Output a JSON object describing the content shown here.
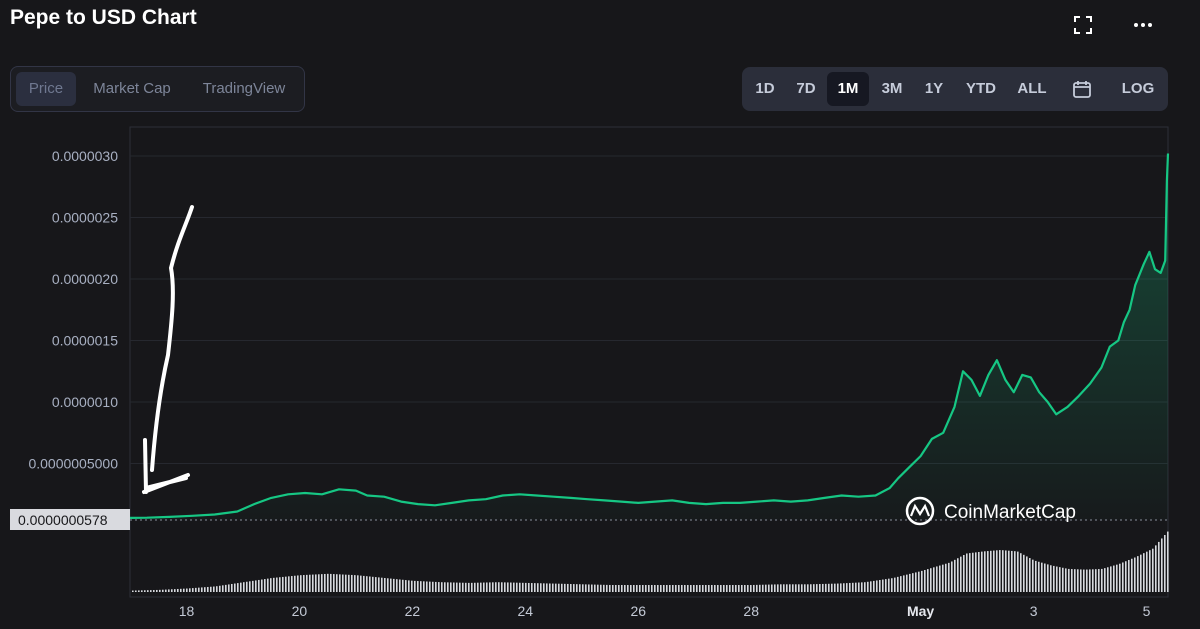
{
  "header": {
    "title": "Pepe to USD Chart",
    "fullscreen_icon": "fullscreen-icon",
    "more_icon": "more-horizontal-icon"
  },
  "view_tabs": [
    {
      "label": "Price",
      "active": true
    },
    {
      "label": "Market Cap",
      "active": false
    },
    {
      "label": "TradingView",
      "active": false
    }
  ],
  "range_tabs": [
    {
      "label": "1D",
      "active": false
    },
    {
      "label": "7D",
      "active": false
    },
    {
      "label": "1M",
      "active": true
    },
    {
      "label": "3M",
      "active": false
    },
    {
      "label": "1Y",
      "active": false
    },
    {
      "label": "YTD",
      "active": false
    },
    {
      "label": "ALL",
      "active": false
    }
  ],
  "calendar_icon": "calendar-icon",
  "log_label": "LOG",
  "watermark": "CoinMarketCap",
  "current_price_label": "0.0000000578",
  "colors": {
    "line": "#16c784",
    "background": "#17171a",
    "annotation": "#ffffff"
  },
  "chart_data": {
    "type": "area",
    "y_ticks": [
      "0.0000030",
      "0.0000025",
      "0.0000020",
      "0.0000015",
      "0.0000010",
      "0.0000005000"
    ],
    "ylim": [
      5e-08,
      3.1e-06
    ],
    "x_ticks": [
      {
        "label": "18",
        "day": 17.5,
        "bold": false
      },
      {
        "label": "20",
        "day": 19.5,
        "bold": false
      },
      {
        "label": "22",
        "day": 21.5,
        "bold": false
      },
      {
        "label": "24",
        "day": 23.5,
        "bold": false
      },
      {
        "label": "26",
        "day": 25.5,
        "bold": false
      },
      {
        "label": "28",
        "day": 27.5,
        "bold": false
      },
      {
        "label": "May",
        "day": 30.5,
        "bold": true
      },
      {
        "label": "3",
        "day": 32.5,
        "bold": false
      },
      {
        "label": "5",
        "day": 34.5,
        "bold": false
      }
    ],
    "series": [
      {
        "points": [
          [
            16.5,
            5.78e-08
          ],
          [
            16.8,
            5.9e-08
          ],
          [
            17.2,
            6.6e-08
          ],
          [
            17.6,
            7.5e-08
          ],
          [
            18.0,
            8.5e-08
          ],
          [
            18.4,
            1.1e-07
          ],
          [
            18.7,
            1.7e-07
          ],
          [
            19.0,
            2.2e-07
          ],
          [
            19.3,
            2.5e-07
          ],
          [
            19.6,
            2.6e-07
          ],
          [
            19.9,
            2.5e-07
          ],
          [
            20.2,
            2.9e-07
          ],
          [
            20.5,
            2.8e-07
          ],
          [
            20.7,
            2.4e-07
          ],
          [
            21.0,
            2.3e-07
          ],
          [
            21.3,
            1.9e-07
          ],
          [
            21.6,
            1.7e-07
          ],
          [
            21.9,
            1.6e-07
          ],
          [
            22.2,
            1.8e-07
          ],
          [
            22.5,
            2e-07
          ],
          [
            22.8,
            2.1e-07
          ],
          [
            23.1,
            2.4e-07
          ],
          [
            23.4,
            2.5e-07
          ],
          [
            23.7,
            2.4e-07
          ],
          [
            24.0,
            2.3e-07
          ],
          [
            24.3,
            2.2e-07
          ],
          [
            24.6,
            2.1e-07
          ],
          [
            24.9,
            2e-07
          ],
          [
            25.2,
            1.9e-07
          ],
          [
            25.5,
            1.8e-07
          ],
          [
            25.8,
            1.9e-07
          ],
          [
            26.1,
            2e-07
          ],
          [
            26.4,
            1.8e-07
          ],
          [
            26.7,
            1.7e-07
          ],
          [
            27.0,
            1.8e-07
          ],
          [
            27.3,
            1.8e-07
          ],
          [
            27.6,
            1.9e-07
          ],
          [
            27.9,
            2e-07
          ],
          [
            28.2,
            1.9e-07
          ],
          [
            28.5,
            2e-07
          ],
          [
            28.8,
            2.2e-07
          ],
          [
            29.1,
            2.4e-07
          ],
          [
            29.4,
            2.3e-07
          ],
          [
            29.7,
            2.4e-07
          ],
          [
            29.95,
            3e-07
          ],
          [
            30.1,
            3.8e-07
          ],
          [
            30.3,
            4.7e-07
          ],
          [
            30.5,
            5.6e-07
          ],
          [
            30.7,
            7e-07
          ],
          [
            30.9,
            7.5e-07
          ],
          [
            31.1,
            9.6e-07
          ],
          [
            31.25,
            1.25e-06
          ],
          [
            31.4,
            1.18e-06
          ],
          [
            31.55,
            1.05e-06
          ],
          [
            31.7,
            1.22e-06
          ],
          [
            31.85,
            1.34e-06
          ],
          [
            32.0,
            1.18e-06
          ],
          [
            32.15,
            1.08e-06
          ],
          [
            32.3,
            1.22e-06
          ],
          [
            32.45,
            1.2e-06
          ],
          [
            32.6,
            1.08e-06
          ],
          [
            32.75,
            1e-06
          ],
          [
            32.9,
            9e-07
          ],
          [
            33.1,
            9.6e-07
          ],
          [
            33.3,
            1.05e-06
          ],
          [
            33.5,
            1.15e-06
          ],
          [
            33.7,
            1.28e-06
          ],
          [
            33.85,
            1.45e-06
          ],
          [
            34.0,
            1.5e-06
          ],
          [
            34.1,
            1.65e-06
          ],
          [
            34.2,
            1.75e-06
          ],
          [
            34.3,
            1.95e-06
          ],
          [
            34.45,
            2.12e-06
          ],
          [
            34.55,
            2.22e-06
          ],
          [
            34.65,
            2.08e-06
          ],
          [
            34.75,
            2.05e-06
          ],
          [
            34.83,
            2.15e-06
          ],
          [
            34.86,
            2.8e-06
          ],
          [
            34.88,
            3.02e-06
          ]
        ]
      }
    ],
    "volume": [
      [
        16.5,
        0.02
      ],
      [
        17.0,
        0.03
      ],
      [
        17.5,
        0.05
      ],
      [
        18.0,
        0.08
      ],
      [
        18.5,
        0.14
      ],
      [
        19.0,
        0.2
      ],
      [
        19.5,
        0.24
      ],
      [
        20.0,
        0.26
      ],
      [
        20.5,
        0.24
      ],
      [
        21.0,
        0.2
      ],
      [
        21.5,
        0.16
      ],
      [
        22.0,
        0.14
      ],
      [
        22.5,
        0.13
      ],
      [
        23.0,
        0.14
      ],
      [
        23.5,
        0.13
      ],
      [
        24.0,
        0.12
      ],
      [
        24.5,
        0.11
      ],
      [
        25.0,
        0.1
      ],
      [
        25.5,
        0.1
      ],
      [
        26.0,
        0.1
      ],
      [
        26.5,
        0.1
      ],
      [
        27.0,
        0.1
      ],
      [
        27.5,
        0.1
      ],
      [
        28.0,
        0.11
      ],
      [
        28.5,
        0.11
      ],
      [
        29.0,
        0.12
      ],
      [
        29.5,
        0.14
      ],
      [
        30.0,
        0.2
      ],
      [
        30.5,
        0.3
      ],
      [
        31.0,
        0.42
      ],
      [
        31.3,
        0.55
      ],
      [
        31.6,
        0.58
      ],
      [
        31.9,
        0.6
      ],
      [
        32.2,
        0.58
      ],
      [
        32.5,
        0.45
      ],
      [
        32.8,
        0.38
      ],
      [
        33.1,
        0.33
      ],
      [
        33.4,
        0.32
      ],
      [
        33.7,
        0.33
      ],
      [
        34.0,
        0.4
      ],
      [
        34.3,
        0.5
      ],
      [
        34.6,
        0.62
      ],
      [
        34.88,
        0.88
      ]
    ]
  }
}
